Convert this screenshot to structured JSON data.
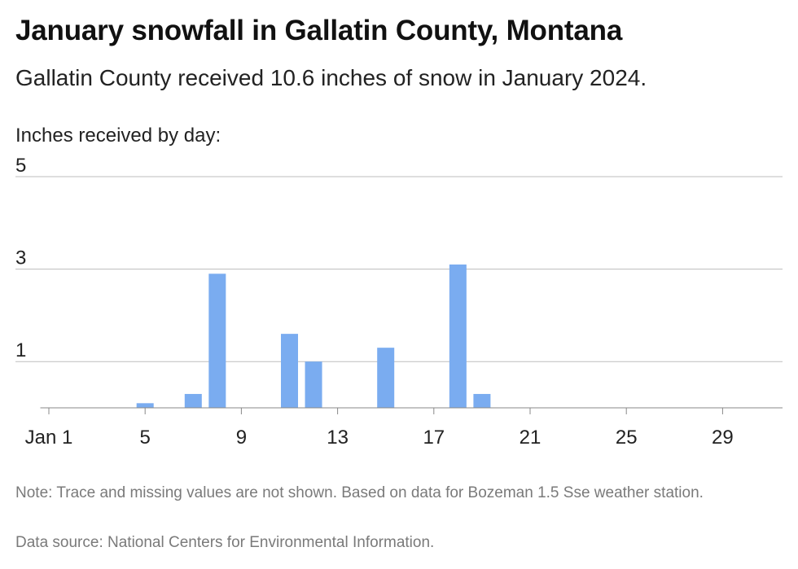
{
  "header": {
    "title": "January snowfall in Gallatin County, Montana",
    "subtitle": "Gallatin County received 10.6 inches of snow in January 2024."
  },
  "footer": {
    "note": "Note: Trace and missing values are not shown. Based on data for Bozeman 1.5 Sse weather station.",
    "source": "Data source: National Centers for Environmental Information."
  },
  "colors": {
    "bar": "#7aacf0",
    "grid": "#bdbdbd",
    "baseline": "#888888"
  },
  "chart_data": {
    "type": "bar",
    "ylabel": "Inches received by day:",
    "xlabel": "",
    "x": [
      1,
      2,
      3,
      4,
      5,
      6,
      7,
      8,
      9,
      10,
      11,
      12,
      13,
      14,
      15,
      16,
      17,
      18,
      19,
      20,
      21,
      22,
      23,
      24,
      25,
      26,
      27,
      28,
      29,
      30,
      31
    ],
    "values": [
      0,
      0,
      0,
      0,
      0.1,
      0,
      0.3,
      2.9,
      0,
      0,
      1.6,
      1.0,
      0,
      0,
      1.3,
      0,
      0,
      3.1,
      0.3,
      0,
      0,
      0,
      0,
      0,
      0,
      0,
      0,
      0,
      0,
      0,
      0
    ],
    "xticks": [
      1,
      5,
      9,
      13,
      17,
      21,
      25,
      29
    ],
    "xtick_labels": [
      "Jan 1",
      "5",
      "9",
      "13",
      "17",
      "21",
      "25",
      "29"
    ],
    "yticks": [
      1,
      3,
      5
    ],
    "ytick_labels": [
      "1",
      "3",
      "5"
    ],
    "ylim": [
      0,
      5
    ],
    "grid": true
  }
}
